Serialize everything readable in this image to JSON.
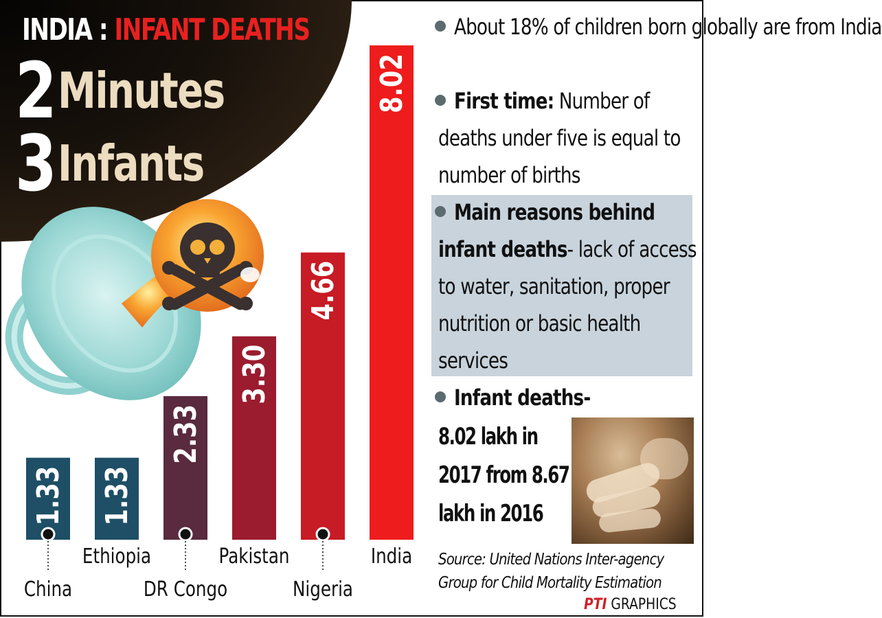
{
  "header": {
    "country": "INDIA :",
    "headline": "INFANT DEATHS",
    "stat1_number": "2",
    "stat1_word": "Minutes",
    "stat2_number": "3",
    "stat2_word": "Infants"
  },
  "chart_data": {
    "type": "bar",
    "categories": [
      "China",
      "Ethiopia",
      "DR Congo",
      "Pakistan",
      "Nigeria",
      "India"
    ],
    "values": [
      1.33,
      1.33,
      2.33,
      3.3,
      4.66,
      8.02
    ],
    "value_labels": [
      "1.33",
      "1.33",
      "2.33",
      "3.30",
      "4.66",
      "8.02"
    ],
    "bar_colors": [
      "#1e4f66",
      "#1e4f66",
      "#5a2a3e",
      "#9a1c2e",
      "#c71b25",
      "#ee1c1c"
    ],
    "title": "",
    "xlabel": "",
    "ylabel": "",
    "ylim": [
      0,
      8.4
    ],
    "grid": false
  },
  "facts": {
    "fact1": "About 18% of children born globally are from India",
    "fact2_bold": "First time:",
    "fact2_rest": " Number of deaths under five is equal to number of births",
    "fact3_bold": "Main reasons behind infant deaths",
    "fact3_rest": "- lack of access to water, sanitation, proper nutrition or basic health services",
    "fact4_bold": "Infant deaths",
    "fact4_rest": "-",
    "fact4_line2": "8.02 lakh in",
    "fact4_line3": "2017 from 8.67",
    "fact4_line4": "lakh in 2016"
  },
  "source": {
    "line1": "Source: United Nations Inter-agency",
    "line2": "Group for Child Mortality Estimation"
  },
  "credit": {
    "agency": "PTI",
    "label": " GRAPHICS"
  },
  "icons": {
    "illustration": "pacifier-with-skull-icon",
    "photo": "infant-hand-photo"
  }
}
